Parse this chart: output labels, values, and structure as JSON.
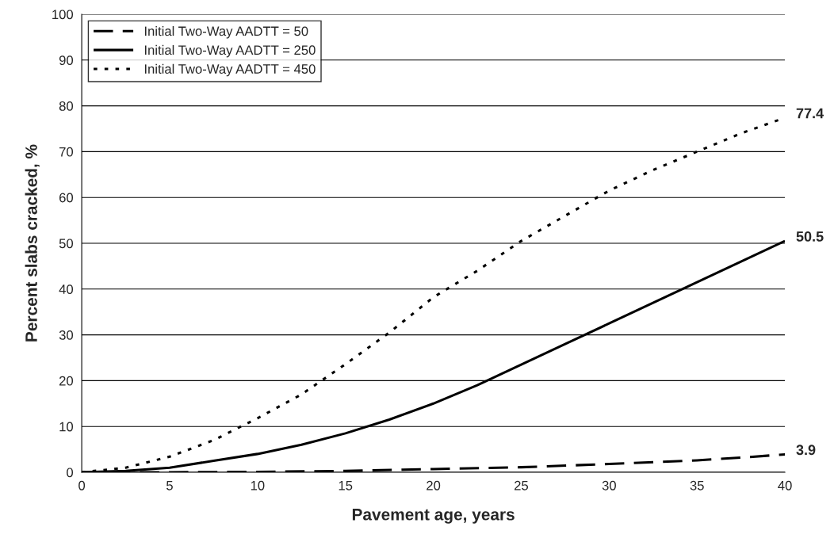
{
  "chart_data": {
    "type": "line",
    "xlabel": "Pavement age, years",
    "ylabel": "Percent slabs cracked, %",
    "xlim": [
      0,
      40
    ],
    "ylim": [
      0,
      100
    ],
    "xticks": [
      0,
      5,
      10,
      15,
      20,
      25,
      30,
      35,
      40
    ],
    "yticks": [
      0,
      10,
      20,
      30,
      40,
      50,
      60,
      70,
      80,
      90,
      100
    ],
    "grid": "y",
    "legend": "top left",
    "marker": "none",
    "series": [
      {
        "name": "Initial Two-Way AADTT = 50",
        "color": "#000000",
        "line_style": "dashed",
        "x": [
          0,
          5,
          10,
          15,
          20,
          25,
          30,
          35,
          37.5,
          40
        ],
        "values": [
          0,
          0,
          0.1,
          0.3,
          0.7,
          1.1,
          1.8,
          2.6,
          3.2,
          3.9
        ],
        "value_labels": [
          null,
          null,
          null,
          null,
          null,
          null,
          null,
          null,
          null,
          "3.9"
        ]
      },
      {
        "name": "Initial Two-Way AADTT = 250",
        "color": "#000000",
        "line_style": "solid",
        "x": [
          0,
          2.5,
          5,
          7.5,
          10,
          12.5,
          15,
          17.5,
          20,
          22.5,
          25,
          27.5,
          30,
          32.5,
          35,
          37.5,
          40
        ],
        "values": [
          0,
          0.3,
          1,
          2.5,
          4,
          6,
          8.5,
          11.5,
          15,
          19,
          23.5,
          28,
          32.5,
          37,
          41.5,
          46,
          50.5
        ],
        "value_labels": [
          null,
          null,
          null,
          null,
          null,
          null,
          null,
          null,
          null,
          null,
          null,
          null,
          null,
          null,
          null,
          null,
          "50.5"
        ]
      },
      {
        "name": "Initial Two-Way AADTT = 450",
        "color": "#000000",
        "line_style": "dotted",
        "x": [
          0,
          2.5,
          5,
          7.5,
          10,
          12.5,
          15,
          17.5,
          20,
          22.5,
          25,
          27.5,
          30,
          32.5,
          35,
          37.5,
          40
        ],
        "values": [
          0,
          1,
          3.4,
          7,
          11.8,
          17,
          23.6,
          30.5,
          38.2,
          44,
          50.5,
          56,
          61.5,
          66,
          70,
          74,
          77.4
        ],
        "value_labels": [
          null,
          null,
          null,
          null,
          null,
          null,
          null,
          null,
          null,
          null,
          null,
          null,
          null,
          null,
          null,
          null,
          "77.4"
        ]
      }
    ]
  }
}
